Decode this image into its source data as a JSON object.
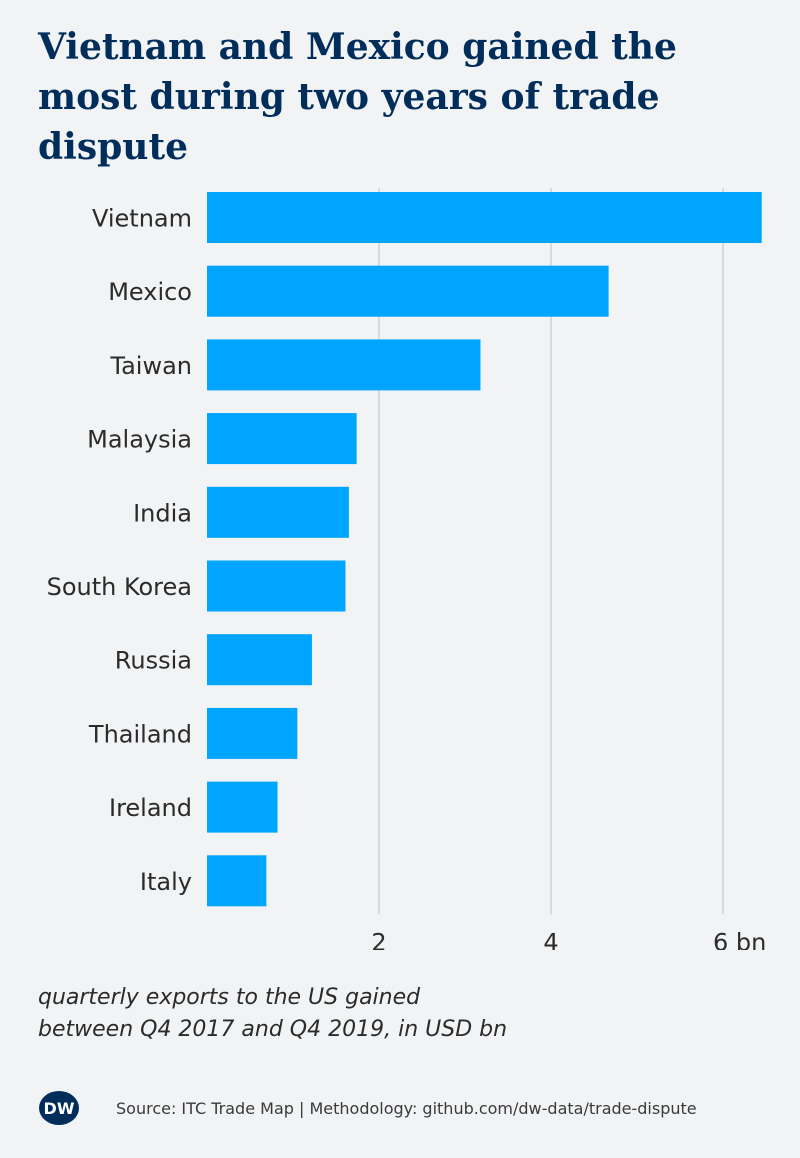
{
  "title": "Vietnam and Mexico gained the most during two years of trade dispute",
  "note": {
    "line1": "quarterly exports to the US gained",
    "line2": "between Q4 2017 and Q4 2019, in USD bn"
  },
  "footer": {
    "logo_text": "DW",
    "source": "Source: ITC Trade Map | Methodology: github.com/dw-data/trade-dispute"
  },
  "colors": {
    "bar": "#00a5ff",
    "title": "#002d5a",
    "grid": "#cfd3d6",
    "text": "#2b2b2b",
    "logo": "#002d5a"
  },
  "chart_data": {
    "type": "bar",
    "orientation": "horizontal",
    "title": "Vietnam and Mexico gained the most during two years of trade dispute",
    "categories": [
      "Vietnam",
      "Mexico",
      "Taiwan",
      "Malaysia",
      "India",
      "South Korea",
      "Russia",
      "Thailand",
      "Ireland",
      "Italy"
    ],
    "values": [
      6.45,
      4.67,
      3.18,
      1.74,
      1.65,
      1.61,
      1.22,
      1.05,
      0.82,
      0.69
    ],
    "xlim": [
      0,
      6.5
    ],
    "xticks": [
      2,
      4,
      6
    ],
    "xtick_labels": [
      "2",
      "4",
      "6 bn"
    ],
    "grid": "vertical",
    "legend": "none"
  }
}
